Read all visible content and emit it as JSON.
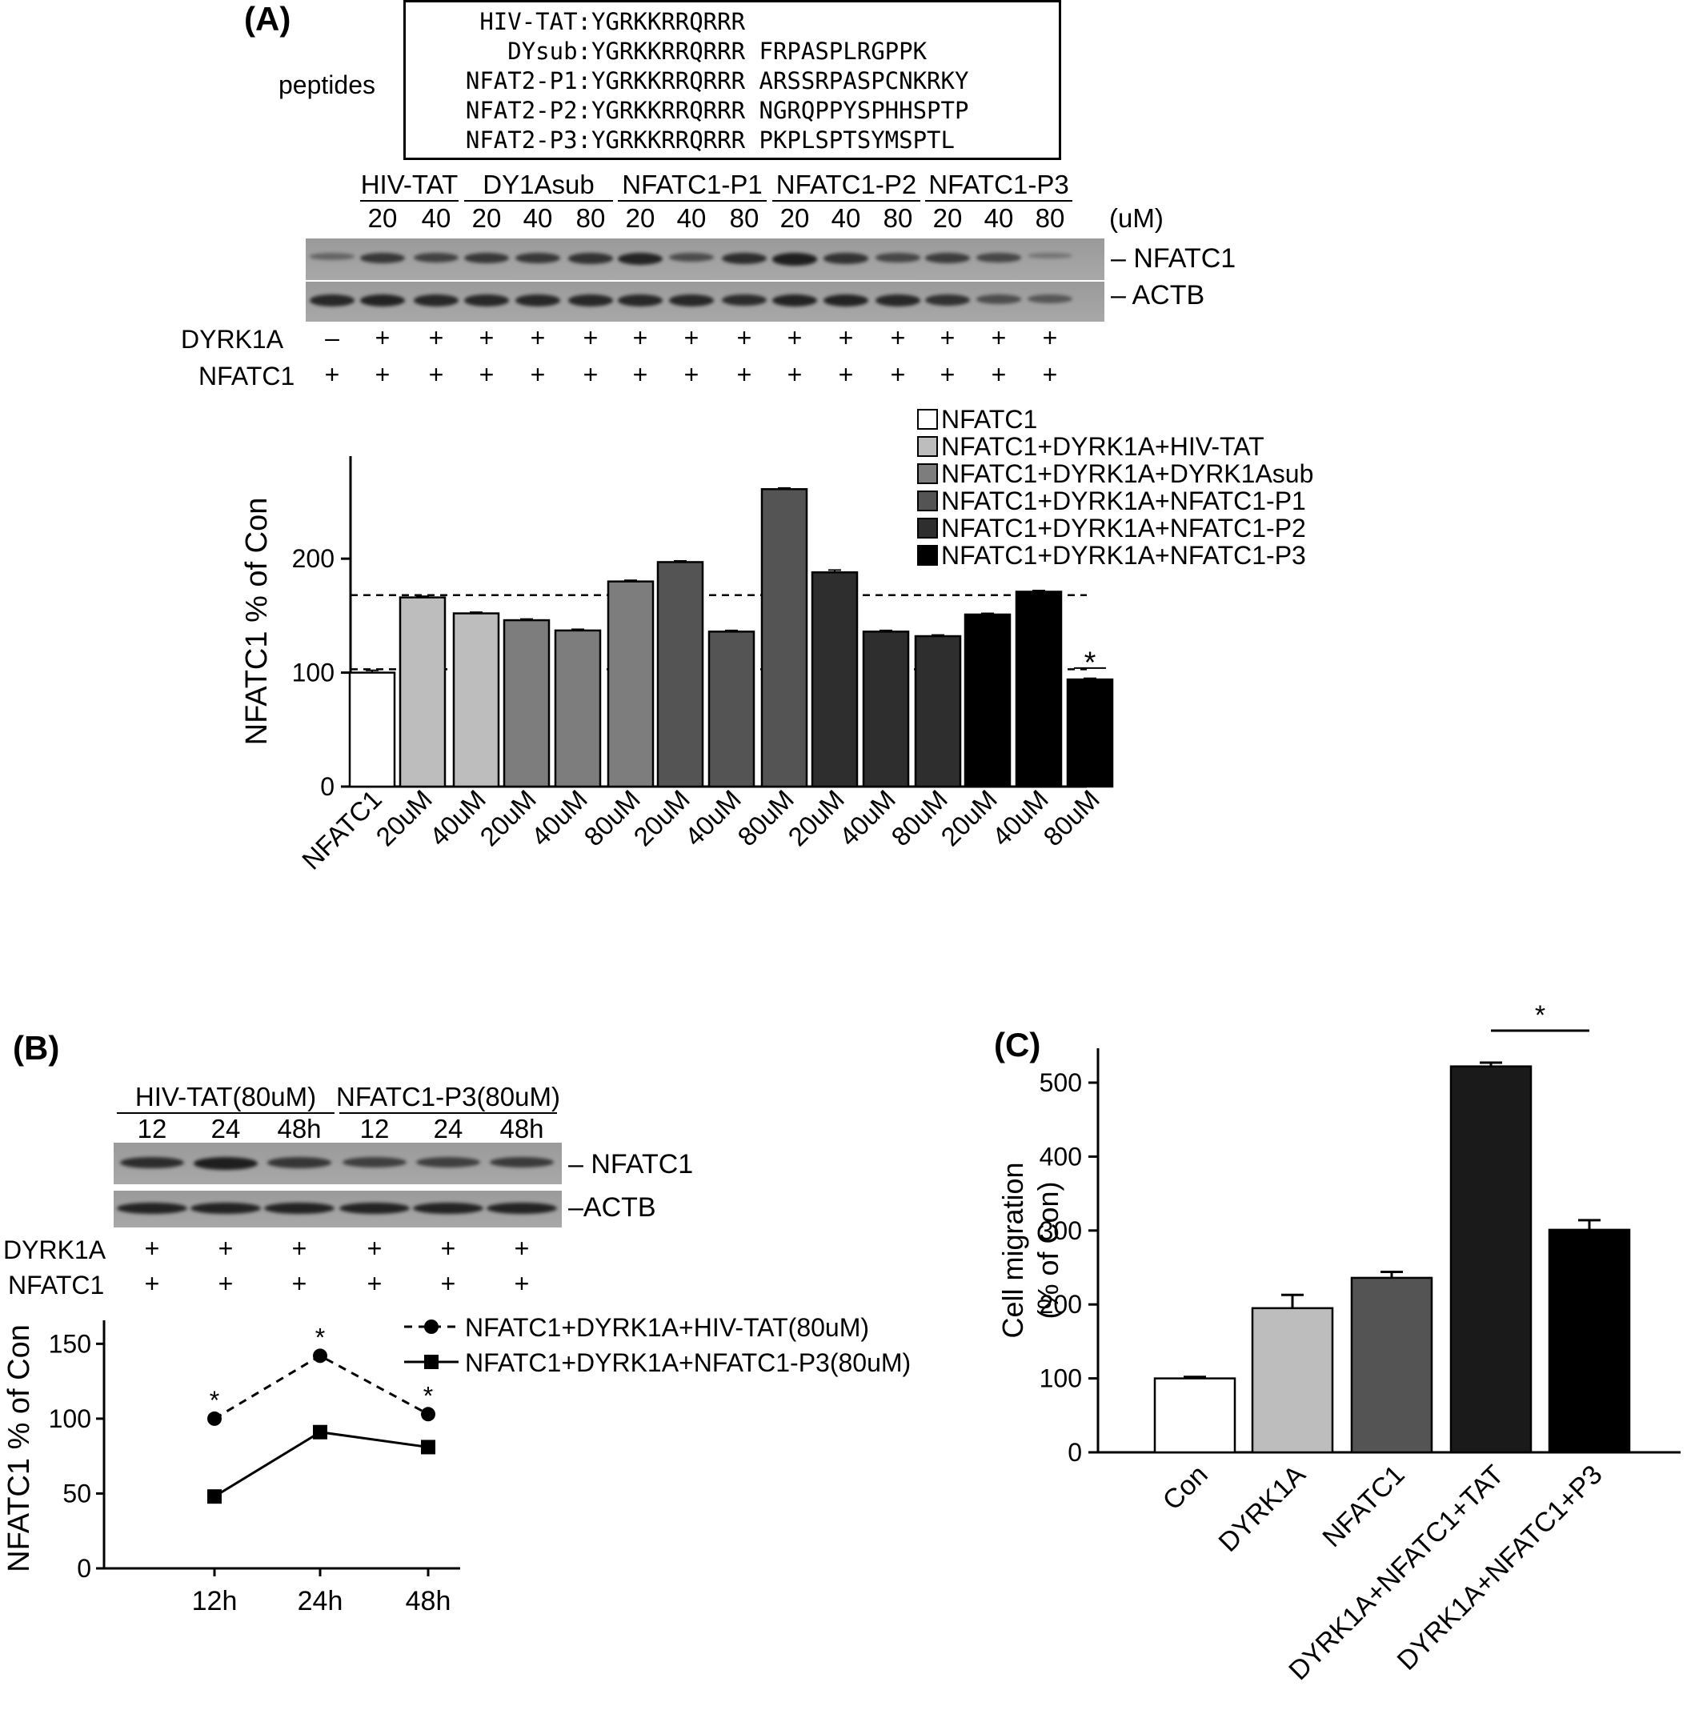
{
  "panelA": {
    "letter": "(A)",
    "peptides_label": "peptides",
    "peptides": [
      {
        "name": "HIV-TAT:",
        "seq": "YGRKKRRQRRR"
      },
      {
        "name": "DYsub:",
        "seq": "YGRKKRRQRRR FRPASPLRGPPK"
      },
      {
        "name": "NFAT2-P1:",
        "seq": "YGRKKRRQRRR ARSSRPASPCNKRKY"
      },
      {
        "name": "NFAT2-P2:",
        "seq": "YGRKKRRQRRR NGRQPPYSPHHSPTP"
      },
      {
        "name": "NFAT2-P3:",
        "seq": "YGRKKRRQRRR PKPLSPTSYMSPTL"
      }
    ],
    "groups": [
      "HIV-TAT",
      "DY1Asub",
      "NFATC1-P1",
      "NFATC1-P2",
      "NFATC1-P3"
    ],
    "conc_labels": [
      "20",
      "40",
      "20",
      "40",
      "80",
      "20",
      "40",
      "80",
      "20",
      "40",
      "80",
      "20",
      "40",
      "80"
    ],
    "conc_unit": "(uM)",
    "blot_labels": [
      "NFATC1",
      "ACTB"
    ],
    "row_labels": [
      "DYRK1A",
      "NFATC1"
    ],
    "dyrk1a_signs": [
      "–",
      "+",
      "+",
      "+",
      "+",
      "+",
      "+",
      "+",
      "+",
      "+",
      "+",
      "+",
      "+",
      "+",
      "+"
    ],
    "nfatc1_signs": [
      "+",
      "+",
      "+",
      "+",
      "+",
      "+",
      "+",
      "+",
      "+",
      "+",
      "+",
      "+",
      "+",
      "+",
      "+"
    ]
  },
  "panelB": {
    "letter": "(B)",
    "groups": [
      "HIV-TAT(80uM)",
      "NFATC1-P3(80uM)"
    ],
    "time_labels": [
      "12",
      "24",
      "48h",
      "12",
      "24",
      "48h"
    ],
    "blot_labels": [
      "NFATC1",
      "ACTB"
    ],
    "row_labels": [
      "DYRK1A",
      "NFATC1"
    ],
    "dyrk1a_signs": [
      "+",
      "+",
      "+",
      "+",
      "+",
      "+"
    ],
    "nfatc1_signs": [
      "+",
      "+",
      "+",
      "+",
      "+",
      "+"
    ]
  },
  "panelC": {
    "letter": "(C)"
  },
  "chart_data": [
    {
      "type": "bar",
      "panel": "A",
      "ylabel": "NFATC1 % of Con",
      "ylim": [
        0,
        290
      ],
      "yticks": [
        0,
        100,
        200
      ],
      "categories": [
        "NFATC1",
        "20uM",
        "40uM",
        "20uM",
        "40uM",
        "80uM",
        "20uM",
        "40uM",
        "80uM",
        "20uM",
        "40uM",
        "80uM",
        "20uM",
        "40uM",
        "80uM"
      ],
      "values": [
        100,
        166,
        152,
        146,
        137,
        180,
        197,
        136,
        261,
        188,
        136,
        132,
        151,
        171,
        94
      ],
      "errors": [
        2,
        1,
        1,
        1,
        1,
        1,
        1,
        1,
        1,
        2,
        1,
        1,
        1,
        1,
        1
      ],
      "series_index": [
        0,
        1,
        1,
        2,
        2,
        2,
        3,
        3,
        3,
        4,
        4,
        4,
        5,
        5,
        5
      ],
      "legend": [
        "NFATC1",
        "NFATC1+DYRK1A+HIV-TAT",
        "NFATC1+DYRK1A+DYRK1Asub",
        "NFATC1+DYRK1A+NFATC1-P1",
        "NFATC1+DYRK1A+NFATC1-P2",
        "NFATC1+DYRK1A+NFATC1-P3"
      ],
      "colors": [
        "#ffffff",
        "#bdbdbd",
        "#7d7d7d",
        "#545454",
        "#2e2e2e",
        "#000000"
      ],
      "reference_lines": [
        103,
        168
      ],
      "annotations": [
        {
          "index": 14,
          "text": "*"
        }
      ],
      "legend_position": "top-right"
    },
    {
      "type": "line",
      "panel": "B",
      "ylabel": "NFATC1 % of Con",
      "ylim": [
        0,
        155
      ],
      "yticks": [
        0,
        50,
        100,
        150
      ],
      "x": [
        "12h",
        "24h",
        "48h"
      ],
      "series": [
        {
          "name": "NFATC1+DYRK1A+HIV-TAT(80uM)",
          "values": [
            100,
            142,
            103
          ],
          "style": "dashed",
          "marker": "circle"
        },
        {
          "name": "NFATC1+DYRK1A+NFATC1-P3(80uM)",
          "values": [
            48,
            91,
            81
          ],
          "style": "solid",
          "marker": "square"
        }
      ],
      "annotations": [
        {
          "index": 0,
          "text": "*"
        },
        {
          "index": 1,
          "text": "*"
        },
        {
          "index": 2,
          "text": "*"
        }
      ],
      "legend_position": "top-right"
    },
    {
      "type": "bar",
      "panel": "C",
      "ylabel": [
        "Cell migration",
        "(% of Con)"
      ],
      "ylim": [
        0,
        550
      ],
      "yticks": [
        0,
        100,
        200,
        300,
        400,
        500
      ],
      "categories": [
        "Con",
        "DYRK1A",
        "NFATC1",
        "DYRK1A+NFATC1+TAT",
        "DYRK1A+NFATC1+P3"
      ],
      "values": [
        100,
        195,
        236,
        522,
        301
      ],
      "errors": [
        2,
        18,
        8,
        5,
        13
      ],
      "colors": [
        "#ffffff",
        "#bdbdbd",
        "#545454",
        "#1a1a1a",
        "#000000"
      ],
      "annotations": [
        {
          "between": [
            3,
            4
          ],
          "text": "*"
        }
      ]
    }
  ]
}
